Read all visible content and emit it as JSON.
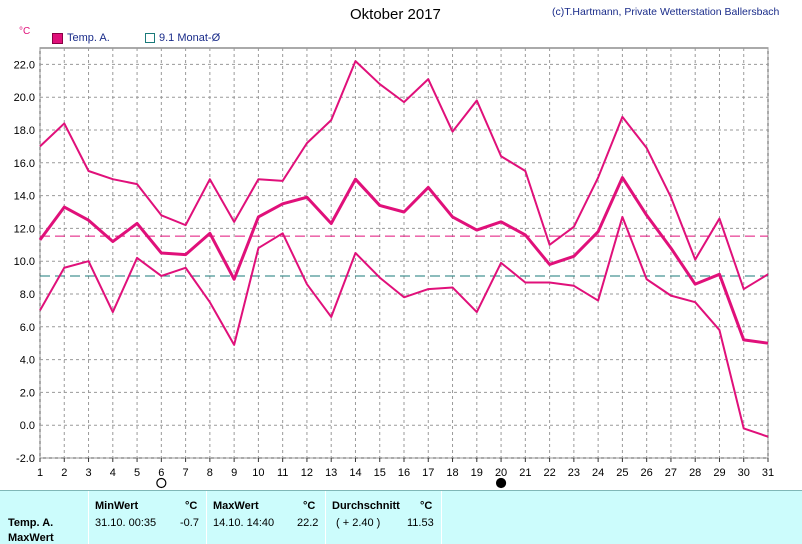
{
  "header": {
    "title": "Oktober 2017",
    "credit": "(c)T.Hartmann, Private Wetterstation Ballersbach",
    "unit": "°C"
  },
  "legend": {
    "temp_label": "Temp. A.",
    "avg_label": "9.1 Monat-Ø"
  },
  "colors": {
    "temp": "#e0107a",
    "avg_line": "#1a7a7a",
    "grid": "#9a9a9a",
    "stats_bg": "#ccfcfc"
  },
  "moon_icons": {
    "day6": "full-moon-icon",
    "day20": "new-moon-icon"
  },
  "chart_data": {
    "type": "line",
    "title": "Oktober 2017",
    "ylabel": "°C",
    "xlabel": "",
    "x": [
      1,
      2,
      3,
      4,
      5,
      6,
      7,
      8,
      9,
      10,
      11,
      12,
      13,
      14,
      15,
      16,
      17,
      18,
      19,
      20,
      21,
      22,
      23,
      24,
      25,
      26,
      27,
      28,
      29,
      30,
      31
    ],
    "ylim": [
      -2.0,
      23.0
    ],
    "yticks": [
      -2.0,
      0.0,
      2.0,
      4.0,
      6.0,
      8.0,
      10.0,
      12.0,
      14.0,
      16.0,
      18.0,
      20.0,
      22.0
    ],
    "grid": true,
    "series": [
      {
        "name": "",
        "values": [
          17.0,
          18.4,
          15.5,
          15.0,
          14.7,
          12.8,
          12.2,
          15.0,
          12.4,
          15.0,
          14.9,
          17.2,
          18.6,
          22.2,
          20.8,
          19.7,
          21.1,
          17.9,
          19.8,
          16.4,
          15.5,
          11.0,
          12.1,
          15.1,
          18.8,
          16.9,
          13.9,
          10.1,
          12.6,
          8.3,
          9.2
        ]
      },
      {
        "name": "Temp. A.",
        "values": [
          11.3,
          13.3,
          12.5,
          11.2,
          12.3,
          10.5,
          10.4,
          11.7,
          8.9,
          12.7,
          13.5,
          13.9,
          12.3,
          15.0,
          13.4,
          13.0,
          14.5,
          12.7,
          11.9,
          12.4,
          11.6,
          9.8,
          10.3,
          11.8,
          15.1,
          12.8,
          10.8,
          8.6,
          9.2,
          5.2,
          5.0
        ]
      },
      {
        "name": "",
        "values": [
          7.0,
          9.6,
          10.0,
          6.9,
          10.2,
          9.1,
          9.6,
          7.5,
          4.9,
          10.8,
          11.7,
          8.6,
          6.6,
          10.5,
          9.0,
          7.8,
          8.3,
          8.4,
          6.9,
          9.9,
          8.7,
          8.7,
          8.5,
          7.6,
          12.7,
          8.9,
          7.9,
          7.5,
          5.8,
          -0.2,
          -0.7
        ]
      }
    ],
    "reference_lines": [
      {
        "name": "",
        "value": 11.53
      },
      {
        "name": "9.1 Monat-Ø",
        "value": 9.1
      }
    ]
  },
  "stats": {
    "row_label_1": "Temp. A.",
    "row_label_2": "MaxWert",
    "min": {
      "header": "MinWert",
      "unit": "°C",
      "date": "31.10.  00:35",
      "value": "-0.7"
    },
    "max": {
      "header": "MaxWert",
      "unit": "°C",
      "date": "14.10.  14:40",
      "value": "22.2"
    },
    "avg": {
      "header": "Durchschnitt",
      "unit": "°C",
      "delta": "( + 2.40 )",
      "value": "11.53"
    }
  }
}
